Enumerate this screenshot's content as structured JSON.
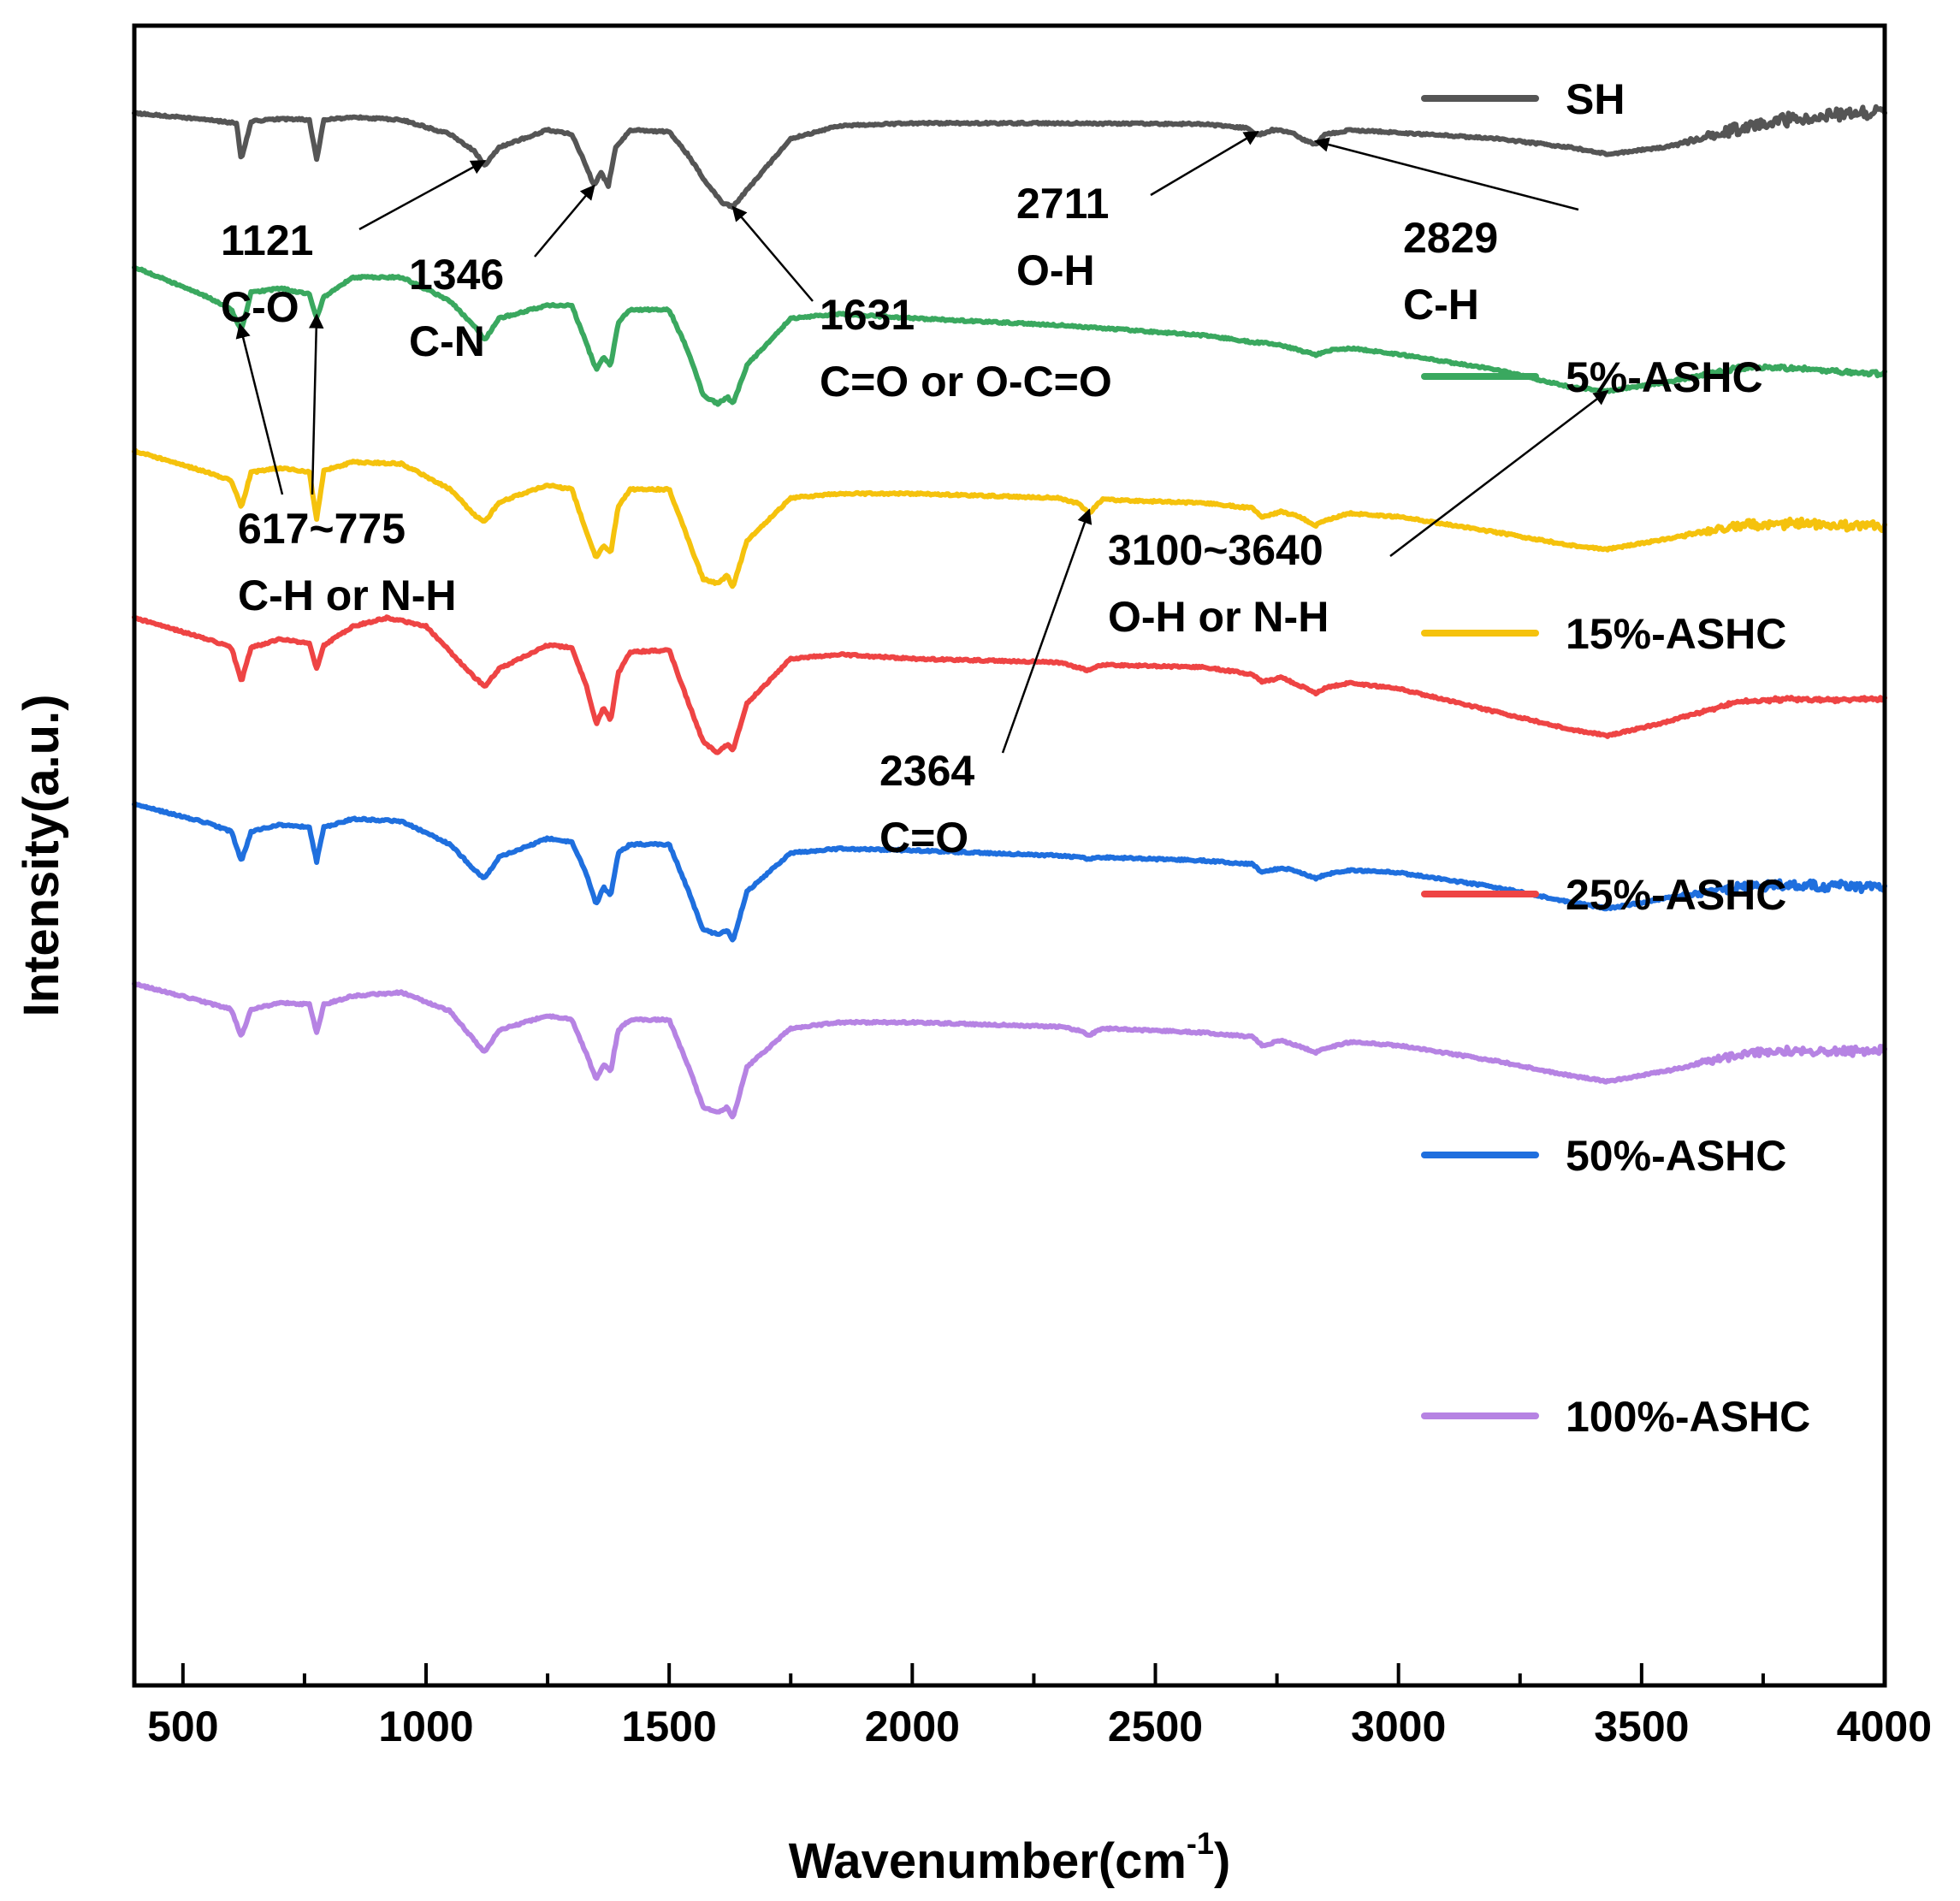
{
  "chart_data": {
    "type": "line",
    "title": "",
    "xlabel": "Wavenumber(cm",
    "xlabel_sup": "-1",
    "xlabel_close": ")",
    "ylabel": "Intensity(a.u.)",
    "xlim": [
      400,
      4000
    ],
    "xticks": [
      500,
      1000,
      1500,
      2000,
      2500,
      3000,
      3500,
      4000
    ],
    "xtick_labels": [
      "500",
      "1000",
      "1500",
      "2000",
      "2500",
      "3000",
      "3500",
      "4000"
    ],
    "yticks_shown": false,
    "grid": false,
    "legend_position": "right",
    "series": [
      {
        "name": "SH",
        "color": "#555555",
        "baseline": 100,
        "noise": 14,
        "x": [
          400,
          550,
          610,
          620,
          640,
          700,
          760,
          775,
          790,
          850,
          950,
          1050,
          1100,
          1121,
          1150,
          1250,
          1300,
          1320,
          1346,
          1360,
          1375,
          1390,
          1420,
          1500,
          1540,
          1580,
          1610,
          1631,
          1660,
          1750,
          1850,
          2000,
          2300,
          2600,
          2690,
          2711,
          2740,
          2780,
          2800,
          2829,
          2850,
          2900,
          3000,
          3200,
          3350,
          3430,
          3550,
          3700,
          3800,
          3900,
          4000
        ],
        "y": [
          100,
          108,
          112,
          155,
          110,
          107,
          108,
          155,
          108,
          105,
          108,
          125,
          145,
          162,
          140,
          120,
          125,
          150,
          185,
          170,
          185,
          140,
          120,
          122,
          150,
          185,
          205,
          210,
          190,
          130,
          115,
          112,
          112,
          113,
          118,
          126,
          120,
          122,
          130,
          137,
          125,
          120,
          123,
          130,
          140,
          148,
          140,
          118,
          108,
          102,
          98
        ]
      },
      {
        "name": "5%-ASHC",
        "color": "#3aa85f",
        "baseline": 405,
        "noise": 4,
        "x": [
          400,
          550,
          600,
          620,
          640,
          700,
          760,
          775,
          790,
          850,
          950,
          1050,
          1100,
          1121,
          1150,
          1250,
          1300,
          1330,
          1350,
          1365,
          1380,
          1395,
          1420,
          1500,
          1540,
          1570,
          1600,
          1620,
          1631,
          1660,
          1750,
          1850,
          2000,
          2300,
          2600,
          2700,
          2750,
          2800,
          2830,
          2850,
          2900,
          3000,
          3200,
          3350,
          3430,
          3550,
          3700,
          3800,
          3900,
          4000
        ],
        "y": [
          280,
          315,
          330,
          355,
          310,
          305,
          312,
          340,
          315,
          292,
          292,
          320,
          350,
          365,
          340,
          325,
          325,
          370,
          400,
          385,
          395,
          345,
          330,
          330,
          380,
          430,
          440,
          432,
          440,
          395,
          340,
          335,
          340,
          348,
          360,
          368,
          370,
          378,
          383,
          378,
          375,
          382,
          400,
          420,
          425,
          415,
          398,
          398,
          402,
          405
        ]
      },
      {
        "name": "15%-ASHC",
        "color": "#f5c20d",
        "baseline": 583,
        "noise": 10,
        "x": [
          400,
          550,
          600,
          620,
          640,
          700,
          760,
          775,
          790,
          850,
          950,
          1050,
          1100,
          1121,
          1150,
          1250,
          1300,
          1330,
          1350,
          1365,
          1380,
          1395,
          1420,
          1500,
          1540,
          1570,
          1600,
          1620,
          1631,
          1660,
          1750,
          1850,
          2000,
          2300,
          2340,
          2364,
          2390,
          2600,
          2700,
          2720,
          2760,
          2800,
          2830,
          2850,
          2900,
          3000,
          3200,
          3350,
          3430,
          3550,
          3700,
          3800,
          3900,
          4000
        ],
        "y": [
          495,
          520,
          530,
          562,
          520,
          515,
          520,
          575,
          518,
          508,
          510,
          540,
          570,
          578,
          555,
          535,
          540,
          590,
          620,
          605,
          615,
          560,
          540,
          540,
          600,
          645,
          650,
          640,
          655,
          600,
          550,
          545,
          545,
          550,
          556,
          568,
          552,
          556,
          562,
          572,
          566,
          573,
          582,
          576,
          568,
          572,
          590,
          605,
          610,
          598,
          582,
          580,
          582,
          583
        ]
      },
      {
        "name": "25%-ASHC",
        "color": "#ee4444",
        "baseline": 785,
        "noise": 3,
        "x": [
          400,
          550,
          600,
          620,
          640,
          700,
          760,
          775,
          790,
          850,
          920,
          1000,
          1050,
          1100,
          1121,
          1150,
          1250,
          1300,
          1330,
          1350,
          1365,
          1380,
          1395,
          1420,
          1500,
          1540,
          1570,
          1600,
          1620,
          1631,
          1660,
          1750,
          1850,
          2000,
          2300,
          2340,
          2364,
          2390,
          2600,
          2700,
          2720,
          2760,
          2800,
          2830,
          2850,
          2900,
          3000,
          3200,
          3350,
          3430,
          3550,
          3700,
          3800,
          3900,
          4000
        ],
        "y": [
          690,
          715,
          725,
          765,
          725,
          715,
          720,
          750,
          722,
          700,
          690,
          700,
          730,
          760,
          770,
          750,
          722,
          725,
          770,
          815,
          795,
          810,
          755,
          730,
          728,
          790,
          835,
          848,
          838,
          845,
          790,
          738,
          733,
          738,
          742,
          748,
          752,
          745,
          748,
          756,
          765,
          760,
          770,
          778,
          772,
          766,
          773,
          800,
          820,
          828,
          812,
          788,
          785,
          786,
          785
        ]
      },
      {
        "name": "50%-ASHC",
        "color": "#1f6fde",
        "baseline": 1005,
        "noise": 10,
        "x": [
          400,
          550,
          600,
          620,
          640,
          700,
          760,
          775,
          790,
          850,
          950,
          1050,
          1100,
          1121,
          1150,
          1250,
          1300,
          1330,
          1350,
          1365,
          1380,
          1395,
          1420,
          1500,
          1540,
          1570,
          1600,
          1620,
          1631,
          1660,
          1750,
          1850,
          2000,
          2300,
          2340,
          2364,
          2390,
          2600,
          2700,
          2720,
          2760,
          2800,
          2830,
          2850,
          2900,
          3000,
          3200,
          3350,
          3430,
          3550,
          3700,
          3800,
          3900,
          4000
        ],
        "y": [
          908,
          930,
          940,
          975,
          940,
          932,
          935,
          975,
          935,
          925,
          928,
          955,
          985,
          995,
          970,
          948,
          952,
          990,
          1025,
          1005,
          1015,
          965,
          955,
          955,
          1010,
          1055,
          1060,
          1055,
          1068,
          1010,
          965,
          960,
          962,
          968,
          970,
          972,
          970,
          974,
          978,
          988,
          982,
          988,
          995,
          990,
          985,
          988,
          1005,
          1022,
          1030,
          1018,
          1005,
          1002,
          1004,
          1005
        ]
      },
      {
        "name": "100%-ASHC",
        "color": "#b683e3",
        "baseline": 1195,
        "noise": 9,
        "x": [
          400,
          550,
          600,
          620,
          640,
          700,
          760,
          775,
          790,
          850,
          950,
          1050,
          1100,
          1121,
          1150,
          1250,
          1300,
          1330,
          1350,
          1365,
          1380,
          1395,
          1420,
          1500,
          1540,
          1570,
          1600,
          1620,
          1631,
          1660,
          1750,
          1850,
          2000,
          2300,
          2340,
          2364,
          2390,
          2600,
          2700,
          2720,
          2760,
          2800,
          2830,
          2850,
          2900,
          3000,
          3200,
          3350,
          3430,
          3550,
          3700,
          3800,
          3900,
          4000
        ],
        "y": [
          1118,
          1140,
          1148,
          1180,
          1148,
          1140,
          1142,
          1175,
          1142,
          1132,
          1128,
          1150,
          1185,
          1198,
          1172,
          1155,
          1160,
          1200,
          1230,
          1212,
          1220,
          1172,
          1160,
          1160,
          1215,
          1262,
          1268,
          1262,
          1275,
          1215,
          1170,
          1163,
          1163,
          1168,
          1172,
          1178,
          1170,
          1175,
          1180,
          1190,
          1184,
          1192,
          1198,
          1193,
          1186,
          1190,
          1208,
          1225,
          1232,
          1220,
          1200,
          1196,
          1197,
          1195
        ]
      }
    ],
    "annotations": [
      {
        "id": "a1121",
        "lines": [
          "1121",
          "C-O"
        ],
        "series": 0,
        "target_x": 1121
      },
      {
        "id": "a1346",
        "lines": [
          "1346",
          "C-N"
        ],
        "series": 0,
        "target_x": 1346
      },
      {
        "id": "a1631",
        "lines": [
          "1631",
          "C=O or O-C=O"
        ],
        "series": 0,
        "target_x": 1631
      },
      {
        "id": "a2711",
        "lines": [
          "2711",
          "O-H"
        ],
        "series": 0,
        "target_x": 2711
      },
      {
        "id": "a2829",
        "lines": [
          "2829",
          "C-H"
        ],
        "series": 0,
        "target_x": 2829
      },
      {
        "id": "a617",
        "lines": [
          "617~775",
          "C-H or N-H"
        ],
        "series": 1,
        "target_x": 617,
        "target_x2": 775
      },
      {
        "id": "a3100",
        "lines": [
          "3100~3640",
          "O-H or N-H"
        ],
        "series": 1,
        "target_x": 3430
      },
      {
        "id": "a2364",
        "lines": [
          "2364",
          "C=O"
        ],
        "series": 2,
        "target_x": 2364
      }
    ]
  }
}
